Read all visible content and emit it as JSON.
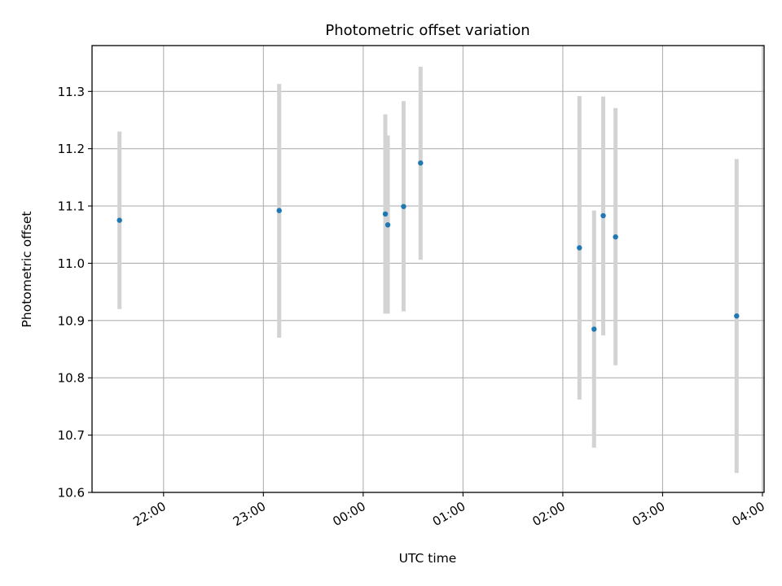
{
  "chart_data": {
    "type": "scatter",
    "title": "Photometric offset variation",
    "xlabel": "UTC time",
    "ylabel": "Photometric offset",
    "x_unit": "HH:MM UTC (times after midnight continue past 24:00)",
    "xlim": [
      "21:17",
      "24:00 + 04:01"
    ],
    "xlim_minutes": [
      1277,
      1681
    ],
    "ylim": [
      10.6,
      11.38
    ],
    "grid": true,
    "x_ticks": [
      "22:00",
      "23:00",
      "00:00",
      "01:00",
      "02:00",
      "03:00",
      "04:00"
    ],
    "x_tick_minutes": [
      1320,
      1380,
      1440,
      1500,
      1560,
      1620,
      1680
    ],
    "y_ticks": [
      "10.6",
      "10.7",
      "10.8",
      "10.9",
      "11.0",
      "11.1",
      "11.2",
      "11.3"
    ],
    "y_tick_values": [
      10.6,
      10.7,
      10.8,
      10.9,
      11.0,
      11.1,
      11.2,
      11.3
    ],
    "colors": {
      "points": "#1f77b4",
      "errorbars": "#d3d3d3",
      "grid": "#b0b0b0"
    },
    "points": [
      {
        "t": "21:33",
        "t_min": 1293.5,
        "y": 11.075,
        "ylow": 10.92,
        "yhigh": 11.23
      },
      {
        "t": "23:09",
        "t_min": 1389.5,
        "y": 11.092,
        "ylow": 10.87,
        "yhigh": 11.313
      },
      {
        "t": "00:13",
        "t_min": 1453.3,
        "y": 11.086,
        "ylow": 10.912,
        "yhigh": 11.26
      },
      {
        "t": "00:15",
        "t_min": 1454.8,
        "y": 11.067,
        "ylow": 10.912,
        "yhigh": 11.223
      },
      {
        "t": "00:24",
        "t_min": 1464.3,
        "y": 11.099,
        "ylow": 10.916,
        "yhigh": 11.283
      },
      {
        "t": "00:35",
        "t_min": 1474.5,
        "y": 11.175,
        "ylow": 11.006,
        "yhigh": 11.343
      },
      {
        "t": "02:10",
        "t_min": 1570.0,
        "y": 11.027,
        "ylow": 10.762,
        "yhigh": 11.292
      },
      {
        "t": "02:18",
        "t_min": 1578.8,
        "y": 10.885,
        "ylow": 10.678,
        "yhigh": 11.092
      },
      {
        "t": "02:24",
        "t_min": 1584.3,
        "y": 11.083,
        "ylow": 10.874,
        "yhigh": 11.291
      },
      {
        "t": "02:31",
        "t_min": 1591.7,
        "y": 11.046,
        "ylow": 10.822,
        "yhigh": 11.271
      },
      {
        "t": "03:44",
        "t_min": 1664.5,
        "y": 10.908,
        "ylow": 10.634,
        "yhigh": 11.182
      }
    ]
  }
}
